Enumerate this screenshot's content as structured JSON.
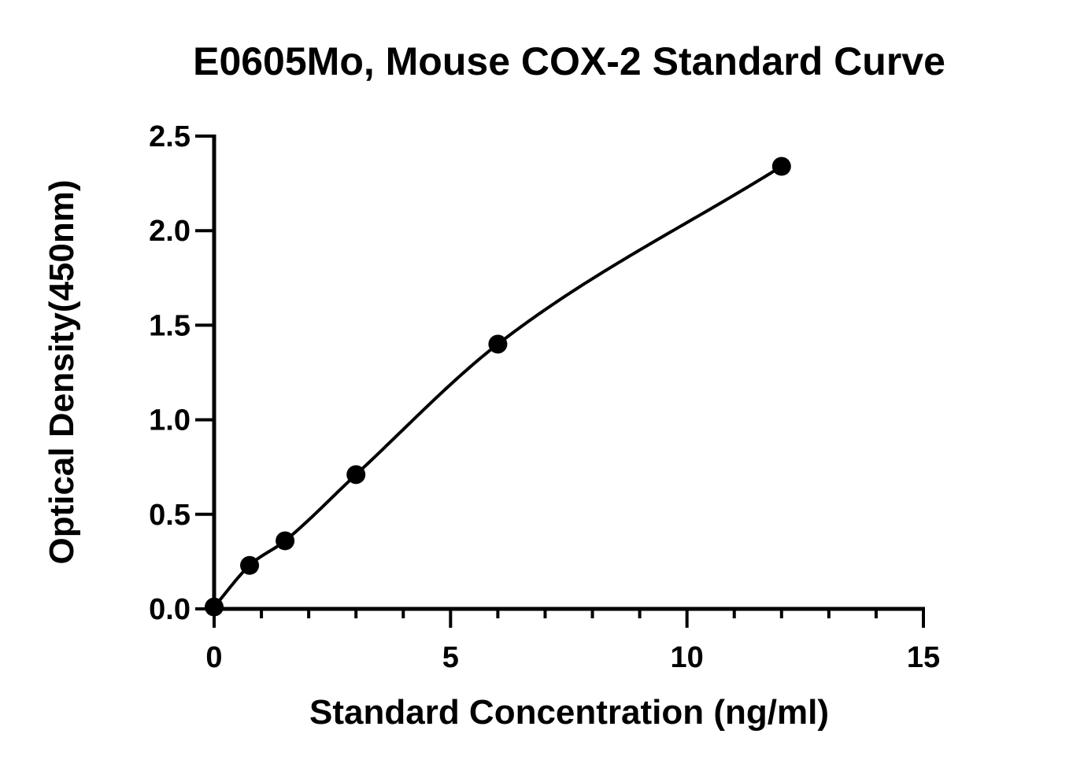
{
  "chart_data": {
    "type": "scatter",
    "title": "E0605Mo, Mouse COX-2 Standard Curve",
    "xlabel": "Standard Concentration (ng/ml)",
    "ylabel": "Optical Density(450nm)",
    "xlim": [
      0,
      15
    ],
    "ylim": [
      0,
      2.5
    ],
    "x_major_ticks": [
      0,
      5,
      10,
      15
    ],
    "x_minor_step": 1,
    "y_major_ticks": [
      0.0,
      0.5,
      1.0,
      1.5,
      2.0,
      2.5
    ],
    "x_tick_labels": [
      "0",
      "5",
      "10",
      "15"
    ],
    "y_tick_labels": [
      "0.0",
      "0.5",
      "1.0",
      "1.5",
      "2.0",
      "2.5"
    ],
    "grid": false,
    "legend": "none",
    "fit_curve": true,
    "series": [
      {
        "x": [
          0,
          0.75,
          1.5,
          3,
          6,
          12
        ],
        "y": [
          0.01,
          0.23,
          0.36,
          0.71,
          1.4,
          2.34
        ]
      }
    ],
    "colors": {
      "marker": "#000000",
      "line": "#000000"
    }
  }
}
